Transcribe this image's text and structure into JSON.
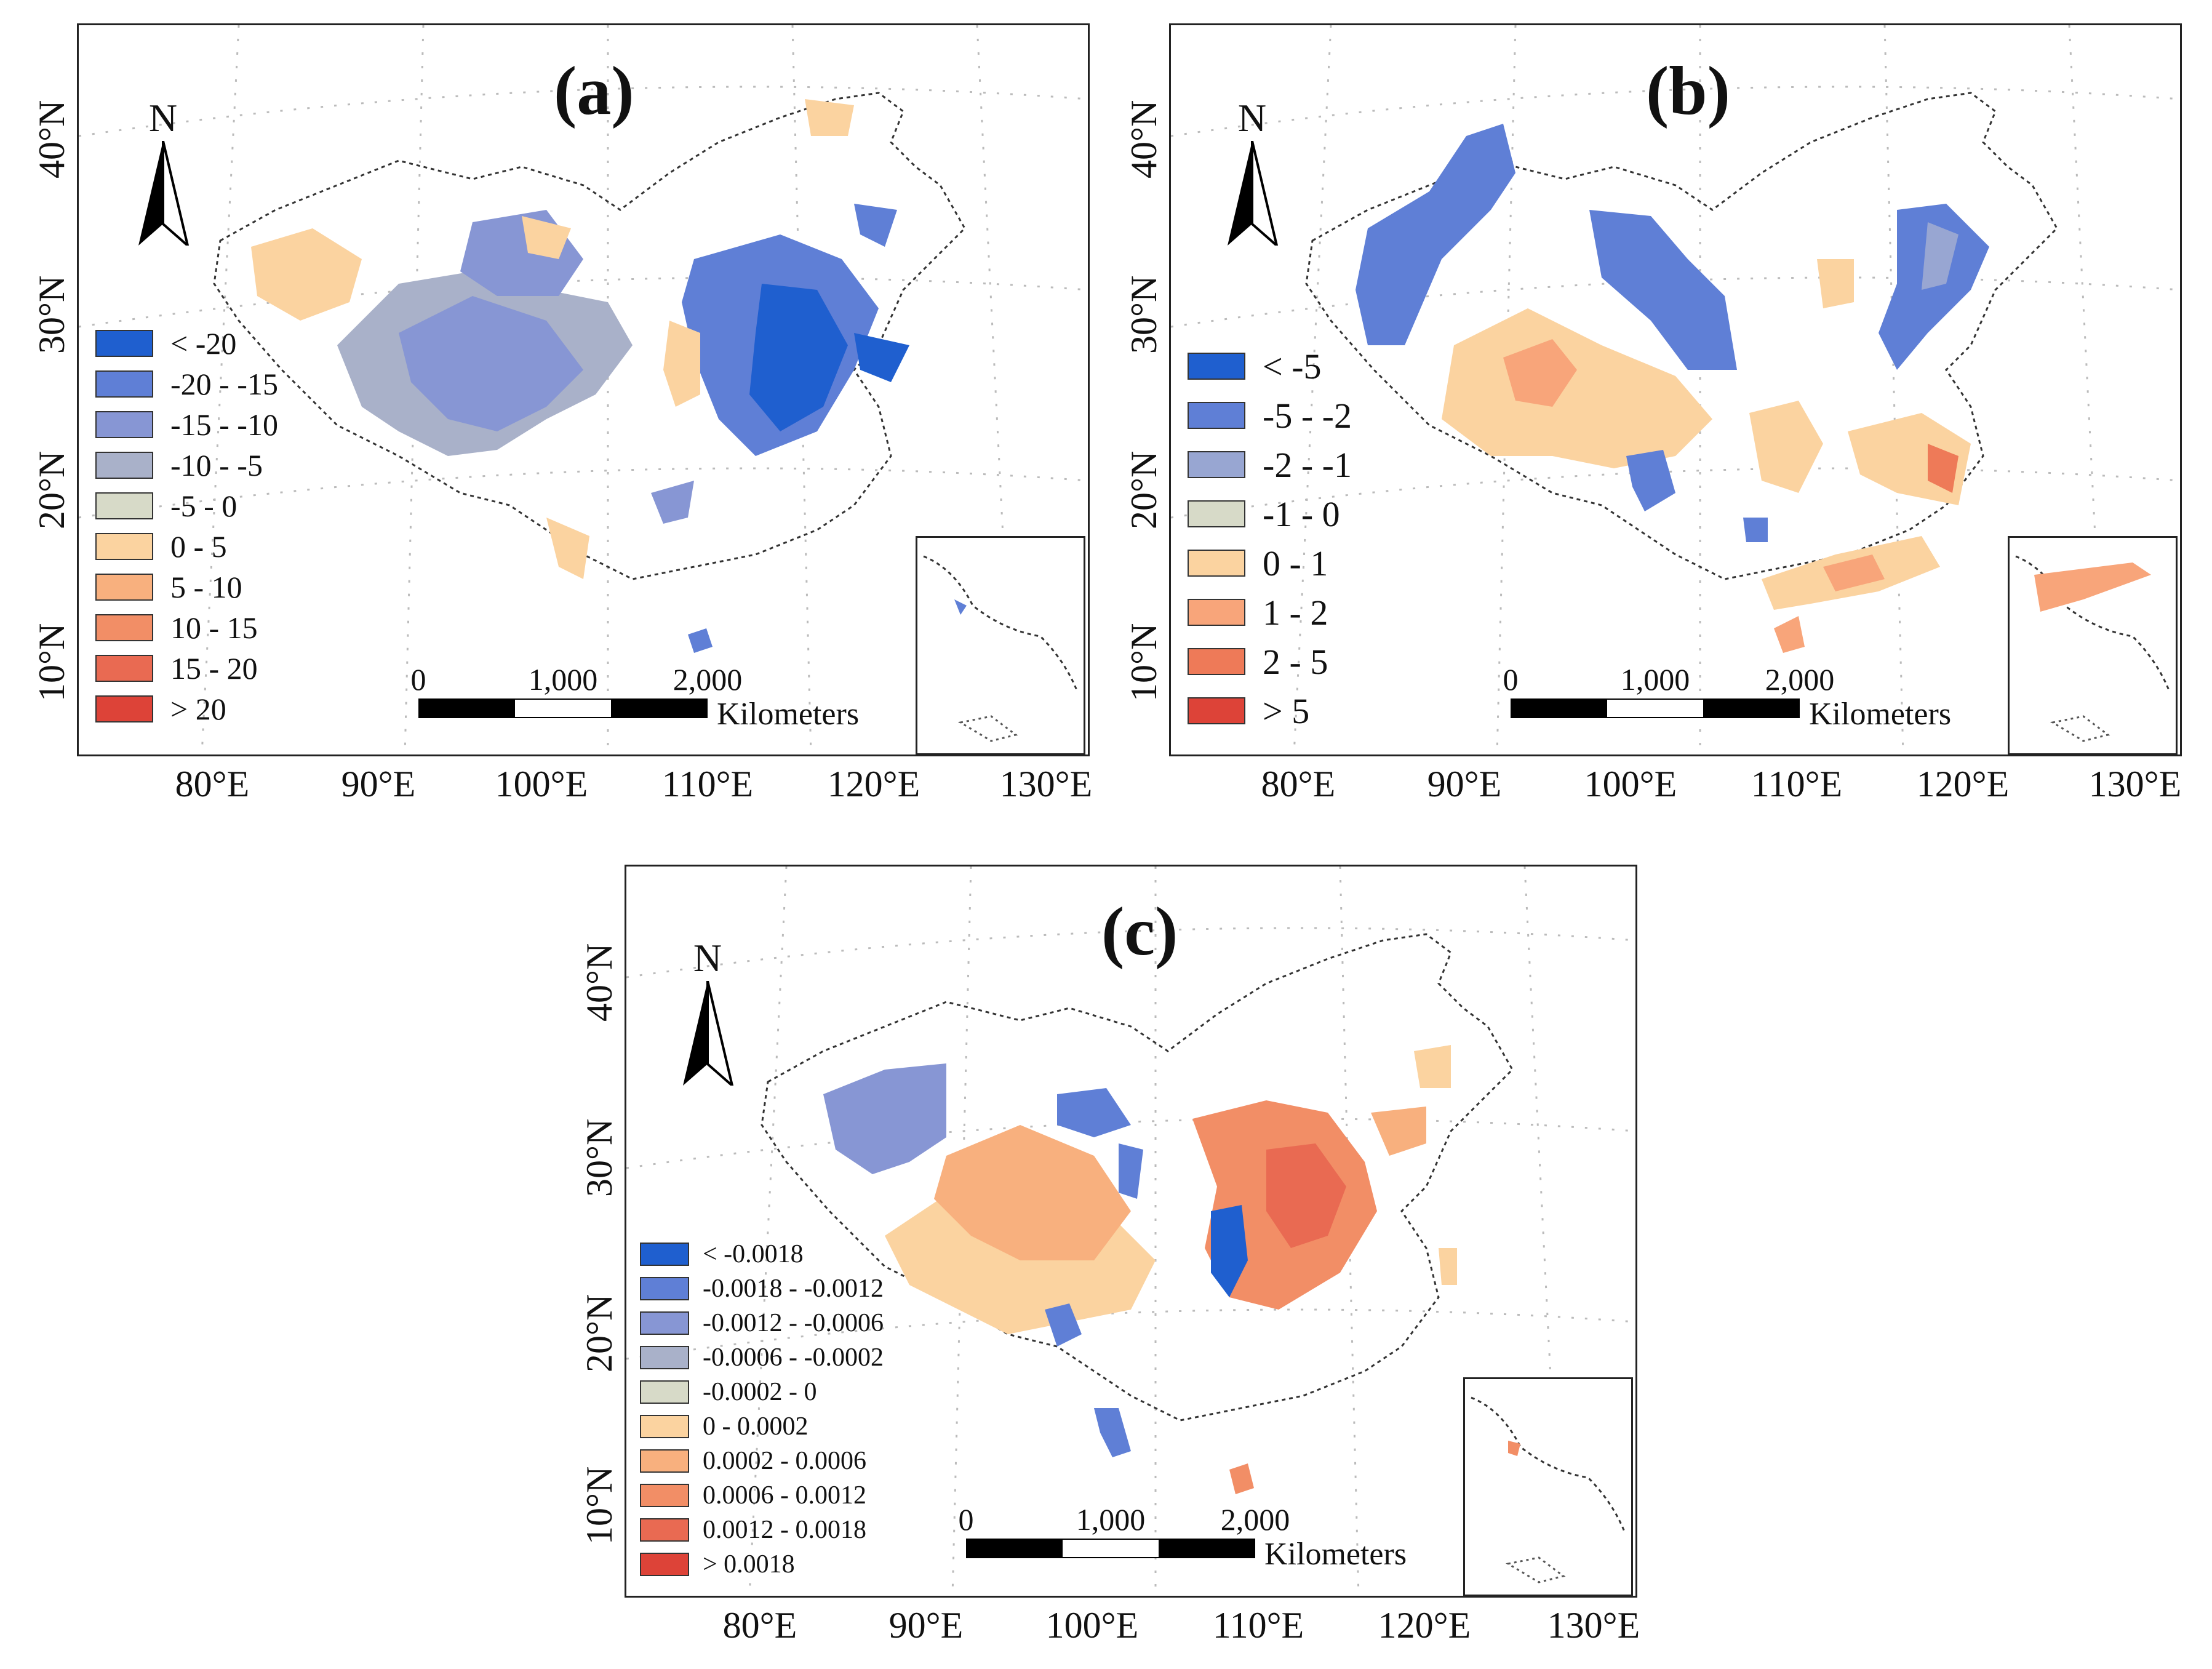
{
  "panels": [
    {
      "id": "a",
      "title": "(a)",
      "north_label": "N",
      "lat_labels": [
        "40°N",
        "30°N",
        "20°N",
        "10°N"
      ],
      "lon_labels": [
        "80°E",
        "90°E",
        "100°E",
        "110°E",
        "120°E",
        "130°E"
      ],
      "legend": [
        {
          "label": "< -20",
          "color": "#1f5fcf"
        },
        {
          "label": "-20 - -15",
          "color": "#5f7fd6"
        },
        {
          "label": "-15 - -10",
          "color": "#8796d4"
        },
        {
          "label": "-10 - -5",
          "color": "#a9b1c9"
        },
        {
          "label": "-5 - 0",
          "color": "#d7dac8"
        },
        {
          "label": "0 - 5",
          "color": "#fbd3a0"
        },
        {
          "label": "5 - 10",
          "color": "#f8b07e"
        },
        {
          "label": "10 - 15",
          "color": "#f28e66"
        },
        {
          "label": "15 - 20",
          "color": "#e96a52"
        },
        {
          "label": "> 20",
          "color": "#dd4338"
        }
      ],
      "scale": {
        "ticks": [
          "0",
          "1,000",
          "2,000"
        ],
        "unit": "Kilometers"
      }
    },
    {
      "id": "b",
      "title": "(b)",
      "north_label": "N",
      "lat_labels": [
        "40°N",
        "30°N",
        "20°N",
        "10°N"
      ],
      "lon_labels": [
        "80°E",
        "90°E",
        "100°E",
        "110°E",
        "120°E",
        "130°E"
      ],
      "legend": [
        {
          "label": "< -5",
          "color": "#1f5fcf"
        },
        {
          "label": "-5 - -2",
          "color": "#5f7fd6"
        },
        {
          "label": "-2 - -1",
          "color": "#98a6d2"
        },
        {
          "label": "-1 - 0",
          "color": "#d7dac8"
        },
        {
          "label": "0 - 1",
          "color": "#fbd3a0"
        },
        {
          "label": "1 - 2",
          "color": "#f8a57a"
        },
        {
          "label": "2 - 5",
          "color": "#ee7a58"
        },
        {
          "label": "> 5",
          "color": "#dd4338"
        }
      ],
      "scale": {
        "ticks": [
          "0",
          "1,000",
          "2,000"
        ],
        "unit": "Kilometers"
      }
    },
    {
      "id": "c",
      "title": "(c)",
      "north_label": "N",
      "lat_labels": [
        "40°N",
        "30°N",
        "20°N",
        "10°N"
      ],
      "lon_labels": [
        "80°E",
        "90°E",
        "100°E",
        "110°E",
        "120°E",
        "130°E"
      ],
      "legend": [
        {
          "label": "< -0.0018",
          "color": "#1f5fcf"
        },
        {
          "label": "-0.0018 - -0.0012",
          "color": "#5f7fd6"
        },
        {
          "label": "-0.0012 - -0.0006",
          "color": "#8796d4"
        },
        {
          "label": "-0.0006 - -0.0002",
          "color": "#a9b1c9"
        },
        {
          "label": "-0.0002 - 0",
          "color": "#d7dac8"
        },
        {
          "label": "0 - 0.0002",
          "color": "#fbd3a0"
        },
        {
          "label": "0.0002 - 0.0006",
          "color": "#f8b07e"
        },
        {
          "label": "0.0006 - 0.0012",
          "color": "#f28e66"
        },
        {
          "label": "0.0012 - 0.0018",
          "color": "#e96a52"
        },
        {
          "label": "> 0.0018",
          "color": "#dd4338"
        }
      ],
      "scale": {
        "ticks": [
          "0",
          "1,000",
          "2,000"
        ],
        "unit": "Kilometers"
      }
    }
  ]
}
